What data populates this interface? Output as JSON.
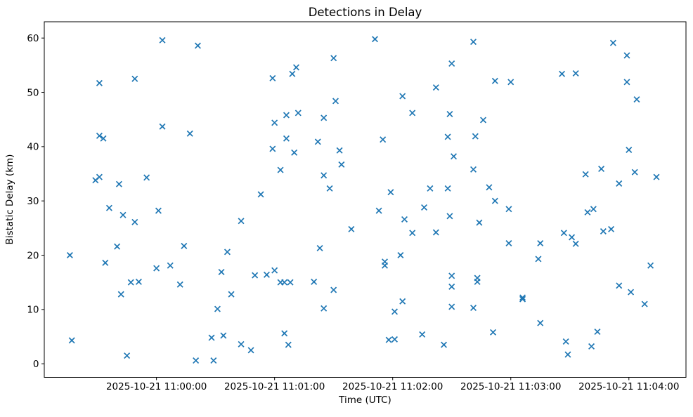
{
  "chart_data": {
    "type": "scatter",
    "title": "Detections in Delay",
    "xlabel": "Time (UTC)",
    "ylabel": "Bistatic Delay (km)",
    "date": "2025-10-21",
    "marker": "x",
    "marker_color": "#1f77b4",
    "grid": false,
    "legend": null,
    "xlim": [
      "10:59:03",
      "11:04:29"
    ],
    "ylim": [
      -2.5,
      63.0
    ],
    "x_ticks": [
      {
        "time": "11:00:00",
        "label": "2025-10-21 11:00:00"
      },
      {
        "time": "11:01:00",
        "label": "2025-10-21 11:01:00"
      },
      {
        "time": "11:02:00",
        "label": "2025-10-21 11:02:00"
      },
      {
        "time": "11:03:00",
        "label": "2025-10-21 11:03:00"
      },
      {
        "time": "11:04:00",
        "label": "2025-10-21 11:04:00"
      }
    ],
    "y_ticks": [
      0,
      10,
      20,
      30,
      40,
      50,
      60
    ],
    "point_format": [
      "time_utc",
      "delay_km"
    ],
    "points": [
      [
        "10:59:16",
        20.0
      ],
      [
        "10:59:17",
        4.3
      ],
      [
        "10:59:29",
        33.8
      ],
      [
        "10:59:31",
        51.7
      ],
      [
        "10:59:31",
        42.0
      ],
      [
        "10:59:31",
        34.4
      ],
      [
        "10:59:33",
        41.5
      ],
      [
        "10:59:34",
        18.6
      ],
      [
        "10:59:36",
        28.7
      ],
      [
        "10:59:40",
        21.6
      ],
      [
        "10:59:41",
        33.1
      ],
      [
        "10:59:42",
        12.8
      ],
      [
        "10:59:43",
        27.4
      ],
      [
        "10:59:45",
        1.5
      ],
      [
        "10:59:47",
        15.0
      ],
      [
        "10:59:49",
        52.5
      ],
      [
        "10:59:49",
        26.1
      ],
      [
        "10:59:51",
        15.1
      ],
      [
        "10:59:55",
        34.3
      ],
      [
        "11:00:00",
        17.6
      ],
      [
        "11:00:01",
        28.2
      ],
      [
        "11:00:03",
        59.6
      ],
      [
        "11:00:03",
        43.7
      ],
      [
        "11:00:07",
        18.1
      ],
      [
        "11:00:12",
        14.6
      ],
      [
        "11:00:14",
        21.7
      ],
      [
        "11:00:17",
        42.4
      ],
      [
        "11:00:20",
        0.6
      ],
      [
        "11:00:21",
        58.6
      ],
      [
        "11:00:28",
        4.8
      ],
      [
        "11:00:29",
        0.6
      ],
      [
        "11:00:31",
        10.1
      ],
      [
        "11:00:33",
        16.9
      ],
      [
        "11:00:34",
        5.2
      ],
      [
        "11:00:36",
        20.6
      ],
      [
        "11:00:38",
        12.8
      ],
      [
        "11:00:43",
        26.3
      ],
      [
        "11:00:43",
        3.6
      ],
      [
        "11:00:48",
        2.5
      ],
      [
        "11:00:50",
        16.3
      ],
      [
        "11:00:53",
        31.2
      ],
      [
        "11:00:56",
        16.4
      ],
      [
        "11:00:59",
        52.6
      ],
      [
        "11:00:59",
        39.6
      ],
      [
        "11:01:00",
        44.4
      ],
      [
        "11:01:00",
        17.2
      ],
      [
        "11:01:03",
        35.7
      ],
      [
        "11:01:03",
        15.0
      ],
      [
        "11:01:05",
        15.0
      ],
      [
        "11:01:05",
        5.6
      ],
      [
        "11:01:06",
        45.8
      ],
      [
        "11:01:06",
        41.5
      ],
      [
        "11:01:07",
        3.5
      ],
      [
        "11:01:08",
        15.0
      ],
      [
        "11:01:09",
        53.4
      ],
      [
        "11:01:10",
        38.9
      ],
      [
        "11:01:11",
        54.6
      ],
      [
        "11:01:12",
        46.2
      ],
      [
        "11:01:20",
        15.1
      ],
      [
        "11:01:22",
        40.9
      ],
      [
        "11:01:23",
        21.3
      ],
      [
        "11:01:25",
        45.3
      ],
      [
        "11:01:25",
        34.7
      ],
      [
        "11:01:25",
        10.2
      ],
      [
        "11:01:28",
        32.3
      ],
      [
        "11:01:30",
        56.3
      ],
      [
        "11:01:30",
        13.6
      ],
      [
        "11:01:31",
        48.4
      ],
      [
        "11:01:33",
        39.3
      ],
      [
        "11:01:34",
        36.7
      ],
      [
        "11:01:39",
        24.8
      ],
      [
        "11:01:51",
        59.8
      ],
      [
        "11:01:53",
        28.2
      ],
      [
        "11:01:55",
        41.3
      ],
      [
        "11:01:56",
        18.8
      ],
      [
        "11:01:56",
        18.1
      ],
      [
        "11:01:58",
        4.4
      ],
      [
        "11:01:59",
        31.6
      ],
      [
        "11:02:01",
        9.6
      ],
      [
        "11:02:01",
        4.5
      ],
      [
        "11:02:04",
        20.0
      ],
      [
        "11:02:05",
        49.3
      ],
      [
        "11:02:05",
        11.5
      ],
      [
        "11:02:06",
        26.6
      ],
      [
        "11:02:10",
        46.2
      ],
      [
        "11:02:10",
        24.1
      ],
      [
        "11:02:15",
        5.4
      ],
      [
        "11:02:16",
        28.8
      ],
      [
        "11:02:19",
        32.3
      ],
      [
        "11:02:22",
        50.9
      ],
      [
        "11:02:22",
        24.2
      ],
      [
        "11:02:26",
        3.5
      ],
      [
        "11:02:28",
        41.8
      ],
      [
        "11:02:28",
        32.3
      ],
      [
        "11:02:29",
        46.0
      ],
      [
        "11:02:29",
        27.2
      ],
      [
        "11:02:30",
        55.3
      ],
      [
        "11:02:30",
        16.2
      ],
      [
        "11:02:30",
        14.2
      ],
      [
        "11:02:30",
        10.5
      ],
      [
        "11:02:31",
        38.2
      ],
      [
        "11:02:41",
        59.3
      ],
      [
        "11:02:41",
        35.8
      ],
      [
        "11:02:41",
        10.3
      ],
      [
        "11:02:42",
        41.9
      ],
      [
        "11:02:43",
        15.8
      ],
      [
        "11:02:43",
        15.1
      ],
      [
        "11:02:44",
        26.0
      ],
      [
        "11:02:46",
        44.9
      ],
      [
        "11:02:49",
        32.5
      ],
      [
        "11:02:51",
        5.8
      ],
      [
        "11:02:52",
        52.1
      ],
      [
        "11:02:52",
        30.0
      ],
      [
        "11:02:59",
        28.5
      ],
      [
        "11:02:59",
        22.2
      ],
      [
        "11:03:00",
        51.9
      ],
      [
        "11:03:06",
        12.2
      ],
      [
        "11:03:06",
        11.9
      ],
      [
        "11:03:14",
        19.3
      ],
      [
        "11:03:15",
        22.2
      ],
      [
        "11:03:15",
        7.5
      ],
      [
        "11:03:26",
        53.4
      ],
      [
        "11:03:27",
        24.1
      ],
      [
        "11:03:28",
        4.1
      ],
      [
        "11:03:29",
        1.7
      ],
      [
        "11:03:31",
        23.3
      ],
      [
        "11:03:33",
        53.5
      ],
      [
        "11:03:33",
        22.1
      ],
      [
        "11:03:38",
        34.9
      ],
      [
        "11:03:39",
        27.9
      ],
      [
        "11:03:41",
        3.2
      ],
      [
        "11:03:42",
        28.5
      ],
      [
        "11:03:44",
        5.9
      ],
      [
        "11:03:46",
        35.9
      ],
      [
        "11:03:47",
        24.4
      ],
      [
        "11:03:51",
        24.8
      ],
      [
        "11:03:52",
        59.1
      ],
      [
        "11:03:55",
        33.2
      ],
      [
        "11:03:55",
        14.4
      ],
      [
        "11:03:59",
        56.8
      ],
      [
        "11:03:59",
        51.9
      ],
      [
        "11:04:00",
        39.4
      ],
      [
        "11:04:01",
        13.2
      ],
      [
        "11:04:03",
        35.3
      ],
      [
        "11:04:04",
        48.7
      ],
      [
        "11:04:08",
        11.0
      ],
      [
        "11:04:11",
        18.1
      ],
      [
        "11:04:14",
        34.4
      ]
    ]
  }
}
